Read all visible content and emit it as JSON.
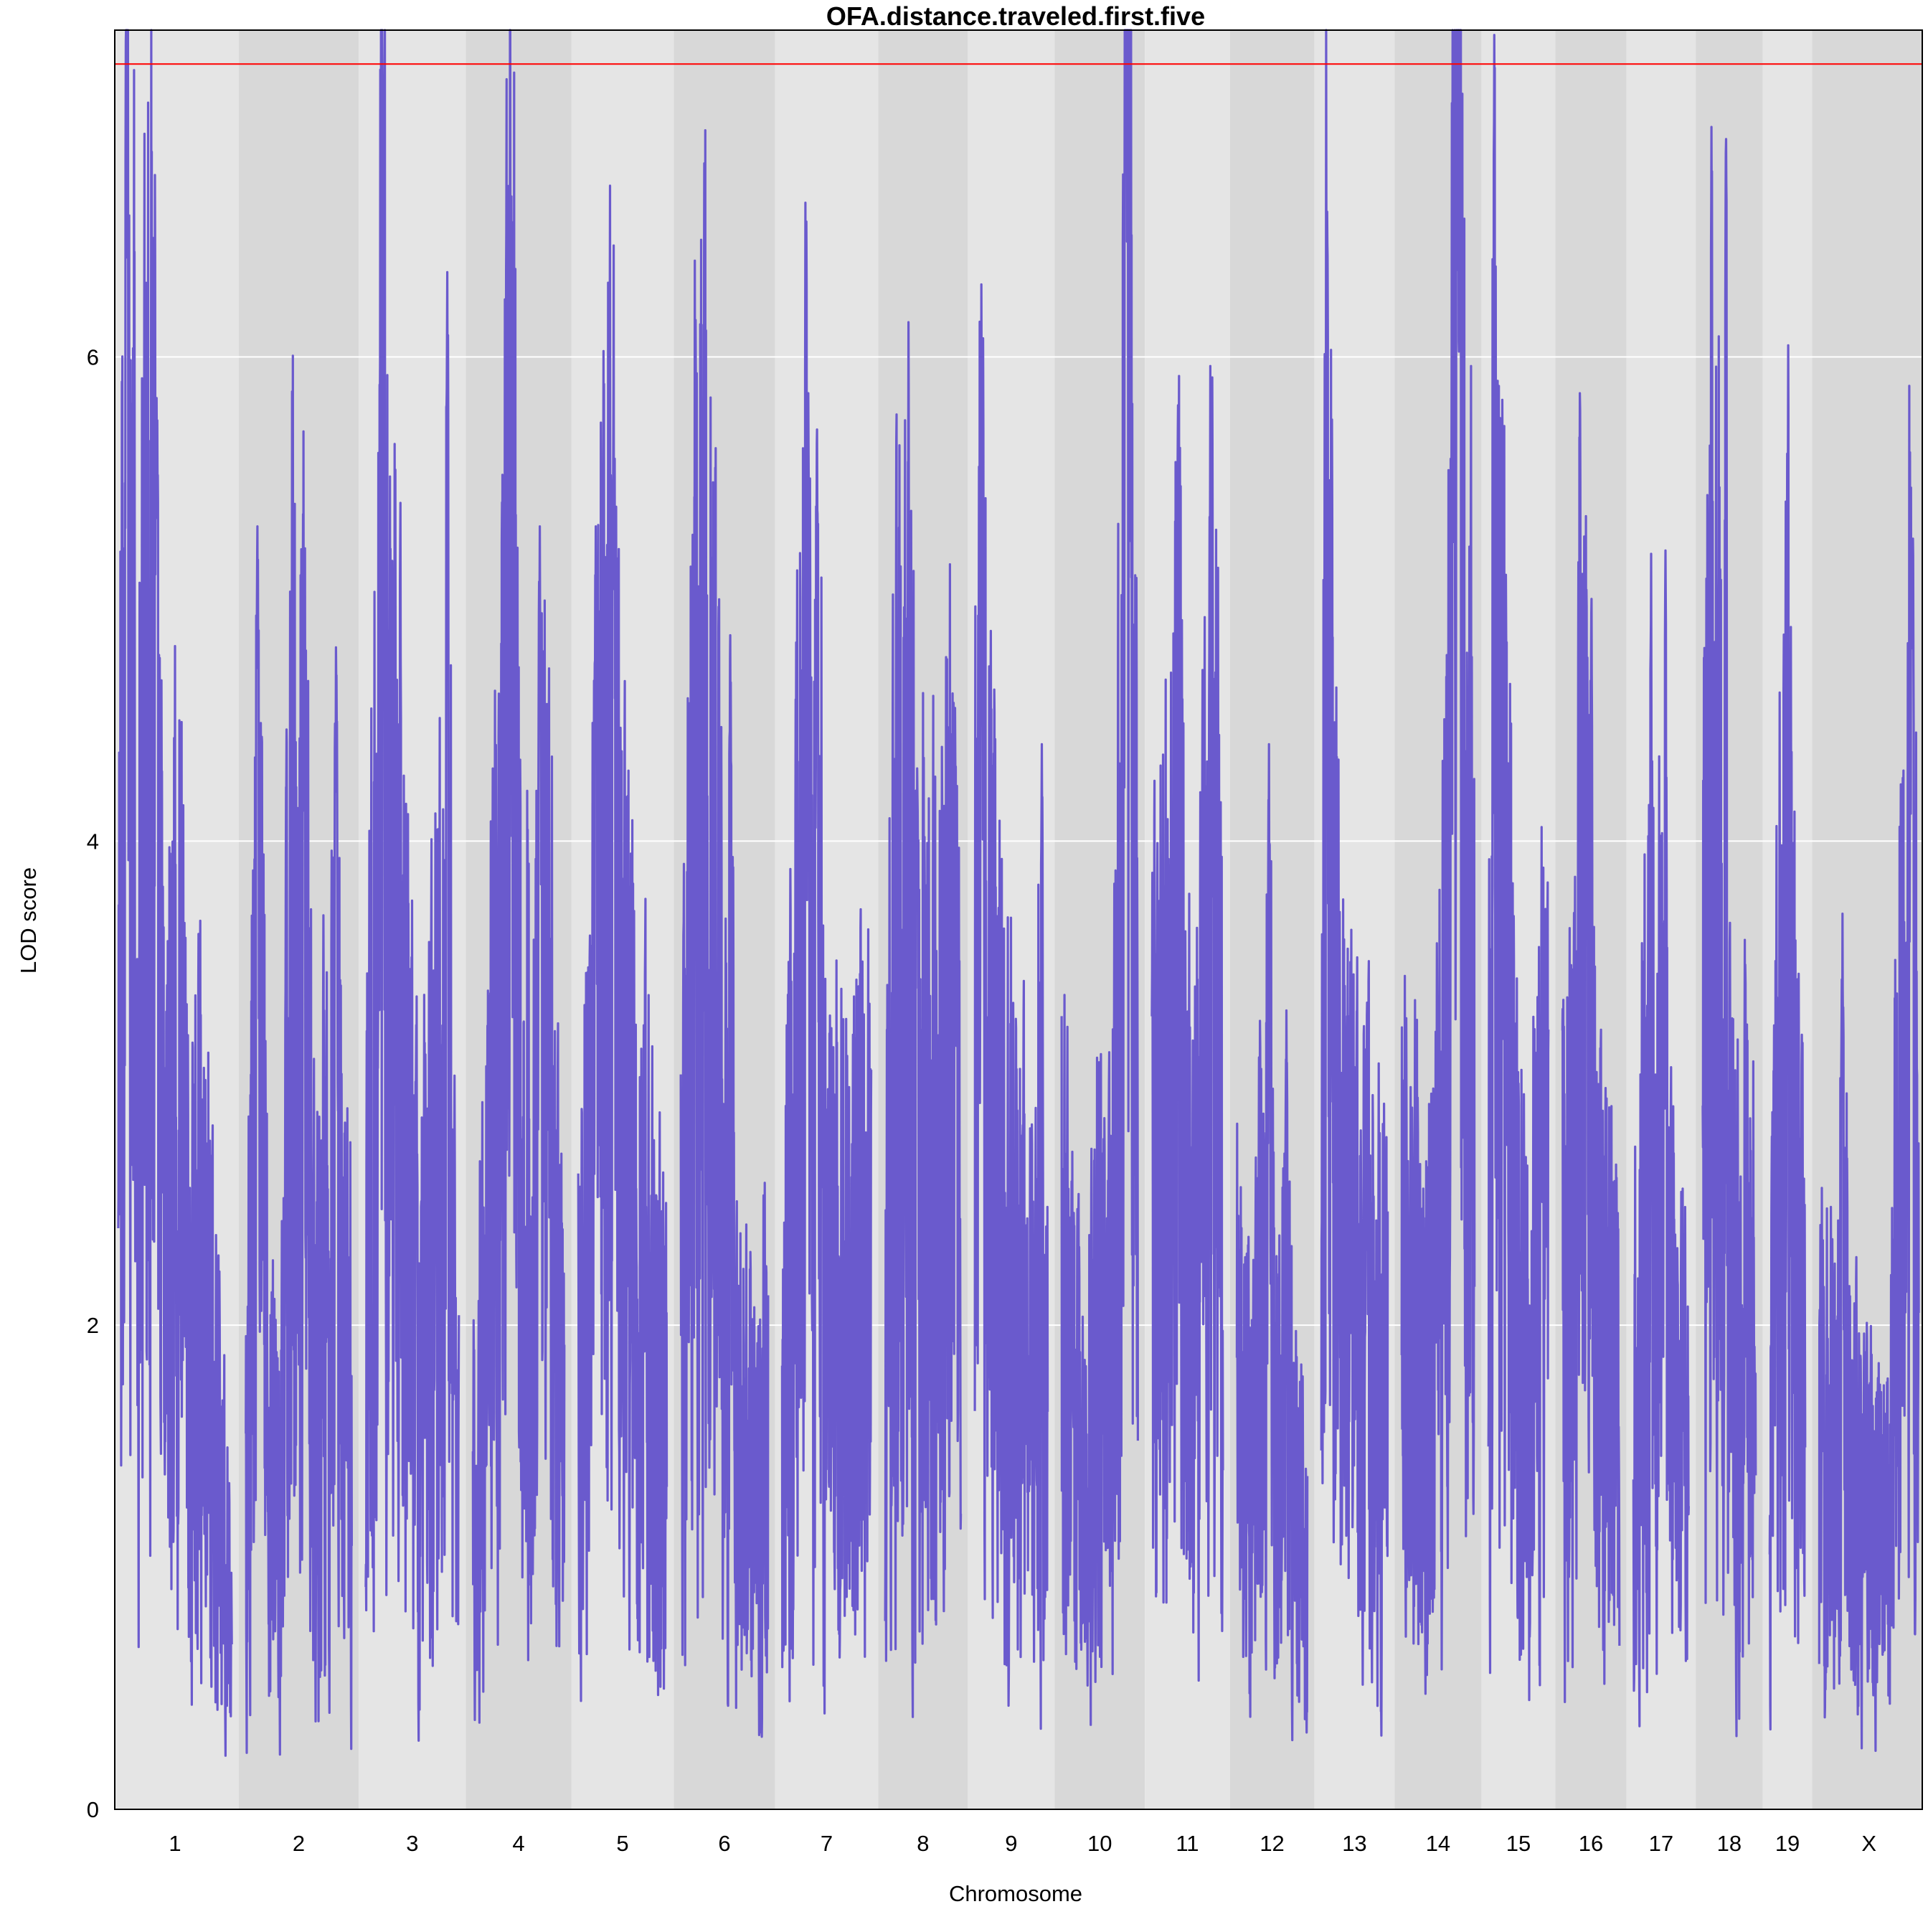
{
  "chart_data": {
    "type": "line",
    "title": "OFA.distance.traveled.first.five",
    "xlabel": "Chromosome",
    "ylabel": "LOD score",
    "ylim": [
      0,
      7.35
    ],
    "yticks": [
      0,
      2,
      4,
      6
    ],
    "threshold": 7.21,
    "colors": {
      "line": "#6a5acd",
      "threshold": "#ff0000",
      "band_light": "#e5e5e5",
      "band_dark": "#d8d8d8",
      "grid": "#ffffff"
    },
    "chromosomes": [
      {
        "name": "1",
        "length": 195,
        "profile": [
          [
            0,
            2.3
          ],
          [
            5,
            3.4
          ],
          [
            10,
            4.1
          ],
          [
            15,
            6.9
          ],
          [
            19,
            3.9
          ],
          [
            25,
            5.1
          ],
          [
            32,
            2.1
          ],
          [
            40,
            3.6
          ],
          [
            50,
            4.0
          ],
          [
            60,
            5.6
          ],
          [
            66,
            3.2
          ],
          [
            80,
            2.1
          ],
          [
            100,
            3.2
          ],
          [
            120,
            1.9
          ],
          [
            150,
            2.1
          ],
          [
            170,
            1.4
          ],
          [
            195,
            0.7
          ]
        ],
        "peaks": [
          [
            15,
            6.95
          ],
          [
            66,
            5.83
          ]
        ]
      },
      {
        "name": "2",
        "length": 182,
        "profile": [
          [
            0,
            1.2
          ],
          [
            10,
            2.6
          ],
          [
            20,
            3.6
          ],
          [
            40,
            1.4
          ],
          [
            60,
            1.2
          ],
          [
            80,
            3.6
          ],
          [
            100,
            3.3
          ],
          [
            120,
            1.6
          ],
          [
            140,
            2.4
          ],
          [
            160,
            2.1
          ],
          [
            182,
            1.7
          ]
        ],
        "peaks": [
          [
            20,
            5.3
          ],
          [
            100,
            4.5
          ],
          [
            155,
            4.8
          ]
        ]
      },
      {
        "name": "3",
        "length": 160,
        "profile": [
          [
            0,
            2.1
          ],
          [
            20,
            3.7
          ],
          [
            30,
            4.9
          ],
          [
            40,
            3.1
          ],
          [
            55,
            3.6
          ],
          [
            70,
            2.4
          ],
          [
            90,
            1.8
          ],
          [
            110,
            2.1
          ],
          [
            130,
            2.7
          ],
          [
            160,
            1.3
          ]
        ],
        "peaks": [
          [
            30,
            6.0
          ],
          [
            140,
            6.35
          ]
        ]
      },
      {
        "name": "4",
        "length": 157,
        "profile": [
          [
            0,
            1.2
          ],
          [
            20,
            1.8
          ],
          [
            45,
            3.1
          ],
          [
            65,
            4.9
          ],
          [
            85,
            3.0
          ],
          [
            105,
            2.4
          ],
          [
            125,
            3.1
          ],
          [
            157,
            1.3
          ]
        ],
        "peaks": [
          [
            65,
            6.2
          ],
          [
            115,
            5.3
          ]
        ]
      },
      {
        "name": "5",
        "length": 152,
        "profile": [
          [
            0,
            1.7
          ],
          [
            25,
            2.6
          ],
          [
            50,
            4.1
          ],
          [
            70,
            3.0
          ],
          [
            90,
            2.4
          ],
          [
            110,
            2.1
          ],
          [
            130,
            1.8
          ],
          [
            152,
            1.4
          ]
        ],
        "peaks": [
          [
            30,
            5.3
          ],
          [
            60,
            5.55
          ]
        ]
      },
      {
        "name": "6",
        "length": 150,
        "profile": [
          [
            0,
            1.9
          ],
          [
            20,
            3.4
          ],
          [
            35,
            4.5
          ],
          [
            55,
            3.6
          ],
          [
            75,
            2.2
          ],
          [
            100,
            1.5
          ],
          [
            125,
            1.3
          ],
          [
            150,
            1.6
          ]
        ],
        "peaks": [
          [
            25,
            5.7
          ],
          [
            85,
            4.85
          ]
        ]
      },
      {
        "name": "7",
        "length": 153,
        "profile": [
          [
            0,
            1.7
          ],
          [
            20,
            2.5
          ],
          [
            40,
            3.9
          ],
          [
            55,
            2.5
          ],
          [
            75,
            2.1
          ],
          [
            95,
            2.1
          ],
          [
            115,
            1.9
          ],
          [
            135,
            2.3
          ],
          [
            153,
            2.0
          ]
        ],
        "peaks": [
          [
            45,
            5.85
          ],
          [
            60,
            5.7
          ]
        ]
      },
      {
        "name": "8",
        "length": 130,
        "profile": [
          [
            0,
            2.2
          ],
          [
            20,
            3.2
          ],
          [
            40,
            3.5
          ],
          [
            60,
            2.4
          ],
          [
            75,
            3.0
          ],
          [
            90,
            2.4
          ],
          [
            105,
            3.1
          ],
          [
            130,
            2.2
          ]
        ],
        "peaks": [
          [
            55,
            4.3
          ],
          [
            120,
            4.55
          ]
        ]
      },
      {
        "name": "9",
        "length": 125,
        "profile": [
          [
            0,
            3.2
          ],
          [
            12,
            4.0
          ],
          [
            25,
            3.0
          ],
          [
            40,
            2.4
          ],
          [
            60,
            2.2
          ],
          [
            80,
            2.0
          ],
          [
            100,
            1.7
          ],
          [
            125,
            1.6
          ]
        ],
        "peaks": [
          [
            12,
            5.88
          ],
          [
            115,
            4.4
          ]
        ]
      },
      {
        "name": "10",
        "length": 131,
        "profile": [
          [
            0,
            2.0
          ],
          [
            20,
            1.6
          ],
          [
            40,
            1.4
          ],
          [
            60,
            1.9
          ],
          [
            80,
            1.8
          ],
          [
            100,
            3.1
          ],
          [
            110,
            6.0
          ],
          [
            120,
            5.4
          ],
          [
            131,
            2.2
          ]
        ],
        "peaks": [
          [
            110,
            7.4
          ],
          [
            118,
            7.1
          ]
        ]
      },
      {
        "name": "11",
        "length": 122,
        "profile": [
          [
            0,
            2.1
          ],
          [
            15,
            3.0
          ],
          [
            30,
            2.5
          ],
          [
            45,
            3.8
          ],
          [
            60,
            2.1
          ],
          [
            80,
            2.3
          ],
          [
            100,
            3.4
          ],
          [
            122,
            2.6
          ]
        ],
        "peaks": [
          [
            45,
            5.8
          ],
          [
            100,
            5.3
          ]
        ]
      },
      {
        "name": "12",
        "length": 121,
        "profile": [
          [
            0,
            1.7
          ],
          [
            25,
            1.3
          ],
          [
            45,
            2.1
          ],
          [
            65,
            1.7
          ],
          [
            85,
            1.4
          ],
          [
            105,
            1.2
          ],
          [
            121,
            1.0
          ]
        ],
        "peaks": [
          [
            55,
            4.4
          ],
          [
            85,
            3.3
          ]
        ]
      },
      {
        "name": "13",
        "length": 114,
        "profile": [
          [
            0,
            3.6
          ],
          [
            10,
            4.4
          ],
          [
            20,
            3.4
          ],
          [
            40,
            2.1
          ],
          [
            60,
            1.9
          ],
          [
            80,
            2.0
          ],
          [
            100,
            1.9
          ],
          [
            114,
            1.6
          ]
        ],
        "peaks": [
          [
            10,
            6.6
          ],
          [
            50,
            3.5
          ]
        ]
      },
      {
        "name": "14",
        "length": 125,
        "profile": [
          [
            0,
            2.1
          ],
          [
            20,
            1.9
          ],
          [
            40,
            1.6
          ],
          [
            60,
            2.1
          ],
          [
            80,
            3.2
          ],
          [
            95,
            5.6
          ],
          [
            105,
            4.6
          ],
          [
            115,
            3.6
          ],
          [
            125,
            2.8
          ]
        ],
        "peaks": [
          [
            90,
            7.3
          ],
          [
            100,
            7.4
          ],
          [
            95,
            6.9
          ]
        ]
      },
      {
        "name": "15",
        "length": 103,
        "profile": [
          [
            0,
            2.6
          ],
          [
            15,
            3.7
          ],
          [
            30,
            3.1
          ],
          [
            50,
            2.1
          ],
          [
            70,
            1.6
          ],
          [
            90,
            2.4
          ],
          [
            103,
            2.5
          ]
        ],
        "peaks": [
          [
            10,
            7.33
          ],
          [
            30,
            5.1
          ]
        ]
      },
      {
        "name": "16",
        "length": 98,
        "profile": [
          [
            0,
            2.1
          ],
          [
            20,
            2.2
          ],
          [
            40,
            3.1
          ],
          [
            60,
            2.0
          ],
          [
            80,
            1.7
          ],
          [
            98,
            1.6
          ]
        ],
        "peaks": [
          [
            30,
            5.85
          ],
          [
            50,
            5.0
          ]
        ]
      },
      {
        "name": "17",
        "length": 95,
        "profile": [
          [
            0,
            1.6
          ],
          [
            15,
            2.1
          ],
          [
            30,
            2.9
          ],
          [
            45,
            2.6
          ],
          [
            60,
            1.9
          ],
          [
            75,
            1.6
          ],
          [
            95,
            1.3
          ]
        ],
        "peaks": [
          [
            30,
            4.9
          ],
          [
            55,
            5.2
          ]
        ]
      },
      {
        "name": "18",
        "length": 91,
        "profile": [
          [
            0,
            2.6
          ],
          [
            15,
            3.7
          ],
          [
            30,
            3.4
          ],
          [
            45,
            2.2
          ],
          [
            60,
            2.0
          ],
          [
            75,
            2.0
          ],
          [
            91,
            1.7
          ]
        ],
        "peaks": [
          [
            15,
            6.95
          ],
          [
            40,
            6.9
          ]
        ]
      },
      {
        "name": "19",
        "length": 61,
        "profile": [
          [
            0,
            1.6
          ],
          [
            15,
            2.6
          ],
          [
            30,
            3.6
          ],
          [
            45,
            2.2
          ],
          [
            61,
            1.8
          ]
        ],
        "peaks": [
          [
            30,
            5.6
          ],
          [
            55,
            3.2
          ]
        ]
      },
      {
        "name": "X",
        "length": 171,
        "profile": [
          [
            0,
            1.5
          ],
          [
            30,
            1.5
          ],
          [
            60,
            1.3
          ],
          [
            90,
            1.1
          ],
          [
            120,
            1.1
          ],
          [
            140,
            2.9
          ],
          [
            155,
            3.5
          ],
          [
            171,
            2.2
          ]
        ],
        "peaks": [
          [
            160,
            5.2
          ],
          [
            40,
            3.7
          ]
        ]
      }
    ]
  }
}
